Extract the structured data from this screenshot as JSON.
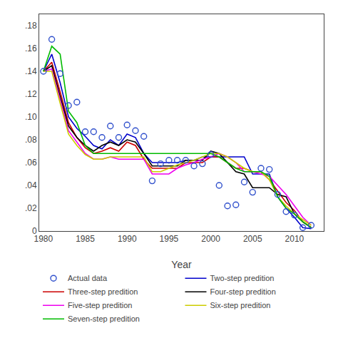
{
  "chart_data": {
    "type": "line",
    "xlabel": "Year",
    "x": [
      1980,
      1981,
      1982,
      1983,
      1984,
      1985,
      1986,
      1987,
      1988,
      1989,
      1990,
      1991,
      1992,
      1993,
      1994,
      1995,
      1996,
      1997,
      1998,
      1999,
      2000,
      2001,
      2002,
      2003,
      2004,
      2005,
      2006,
      2007,
      2008,
      2009,
      2010,
      2011,
      2012
    ],
    "series": [
      {
        "name": "Actual data",
        "type": "scatter",
        "marker": "circle-open",
        "color": "#3050cc",
        "values": [
          0.14,
          0.168,
          0.138,
          0.11,
          0.113,
          0.087,
          0.087,
          0.082,
          0.092,
          0.082,
          0.093,
          0.088,
          0.083,
          0.044,
          0.059,
          0.062,
          0.062,
          0.062,
          0.057,
          0.059,
          0.067,
          0.04,
          0.022,
          0.023,
          0.043,
          0.034,
          0.055,
          0.054,
          0.032,
          0.017,
          0.014,
          0.003,
          0.005
        ]
      },
      {
        "name": "Two-step predition",
        "type": "line",
        "color": "#0000cc",
        "values": [
          0.14,
          0.155,
          0.13,
          0.1,
          0.09,
          0.083,
          0.075,
          0.072,
          0.08,
          0.075,
          0.085,
          0.082,
          0.068,
          0.06,
          0.06,
          0.06,
          0.06,
          0.062,
          0.062,
          0.065,
          0.065,
          0.065,
          0.065,
          0.065,
          0.065,
          0.05,
          0.05,
          0.05,
          0.03,
          0.02,
          0.012,
          0.003,
          0.002
        ]
      },
      {
        "name": "Three-step predition",
        "type": "line",
        "color": "#cc0000",
        "values": [
          0.14,
          0.148,
          0.122,
          0.095,
          0.082,
          0.073,
          0.068,
          0.07,
          0.073,
          0.07,
          0.078,
          0.075,
          0.063,
          0.055,
          0.055,
          0.055,
          0.055,
          0.06,
          0.06,
          0.06,
          0.065,
          0.065,
          0.06,
          0.055,
          0.055,
          0.052,
          0.052,
          0.045,
          0.035,
          0.025,
          0.018,
          0.008,
          0.003
        ]
      },
      {
        "name": "Four-step predition",
        "type": "line",
        "color": "#000000",
        "values": [
          0.14,
          0.145,
          0.118,
          0.092,
          0.082,
          0.075,
          0.07,
          0.075,
          0.078,
          0.075,
          0.08,
          0.078,
          0.068,
          0.057,
          0.057,
          0.057,
          0.057,
          0.062,
          0.062,
          0.062,
          0.07,
          0.068,
          0.06,
          0.052,
          0.05,
          0.038,
          0.038,
          0.038,
          0.032,
          0.03,
          0.015,
          0.008,
          0.003
        ]
      },
      {
        "name": "Five-step predition",
        "type": "line",
        "color": "#ee00ee",
        "values": [
          0.14,
          0.142,
          0.115,
          0.088,
          0.078,
          0.068,
          0.063,
          0.063,
          0.065,
          0.063,
          0.063,
          0.063,
          0.063,
          0.05,
          0.05,
          0.05,
          0.055,
          0.058,
          0.06,
          0.063,
          0.065,
          0.068,
          0.065,
          0.06,
          0.052,
          0.052,
          0.05,
          0.048,
          0.04,
          0.032,
          0.022,
          0.012,
          0.005
        ]
      },
      {
        "name": "Six-step predition",
        "type": "line",
        "color": "#cccc00",
        "values": [
          0.14,
          0.14,
          0.112,
          0.085,
          0.075,
          0.067,
          0.063,
          0.063,
          0.065,
          0.065,
          0.065,
          0.065,
          0.065,
          0.052,
          0.052,
          0.055,
          0.058,
          0.06,
          0.062,
          0.065,
          0.068,
          0.068,
          0.065,
          0.06,
          0.055,
          0.052,
          0.052,
          0.045,
          0.03,
          0.022,
          0.015,
          0.01,
          0.005
        ]
      },
      {
        "name": "Seven-step predition",
        "type": "line",
        "color": "#00bb00",
        "values": [
          0.14,
          0.162,
          0.155,
          0.105,
          0.095,
          0.075,
          0.068,
          0.068,
          0.068,
          0.068,
          0.068,
          0.068,
          0.068,
          0.068,
          0.068,
          0.068,
          0.068,
          0.068,
          0.068,
          0.068,
          0.068,
          0.065,
          0.06,
          0.055,
          0.052,
          0.052,
          0.052,
          0.048,
          0.03,
          0.02,
          0.015,
          0.008,
          0.003
        ]
      }
    ],
    "xlim": [
      1979.5,
      2013.5
    ],
    "xticks": [
      1980,
      1985,
      1990,
      1995,
      2000,
      2005,
      2010
    ],
    "ylim": [
      0,
      0.19
    ],
    "yticks": [
      0,
      {
        "value": 0.02,
        "label": ".02"
      },
      {
        "value": 0.04,
        "label": ".04"
      },
      {
        "value": 0.06,
        "label": ".06"
      },
      {
        "value": 0.08,
        "label": ".08"
      },
      {
        "value": 0.1,
        "label": ".10"
      },
      {
        "value": 0.12,
        "label": ".12"
      },
      {
        "value": 0.14,
        "label": ".14"
      },
      {
        "value": 0.16,
        "label": ".16"
      },
      {
        "value": 0.18,
        "label": ".18"
      }
    ],
    "grid": false,
    "legend": "bottom"
  }
}
